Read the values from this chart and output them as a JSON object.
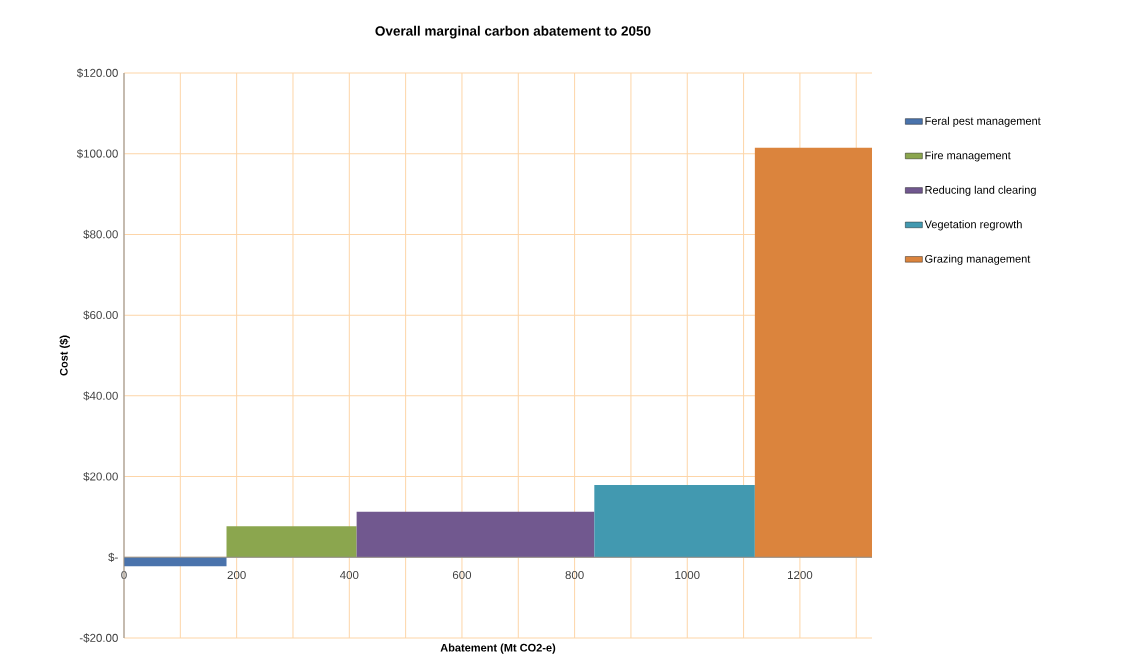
{
  "chart_data": {
    "type": "area",
    "title": "Overall marginal carbon abatement to 2050",
    "xlabel": "Abatement (Mt CO2-e)",
    "ylabel": "Cost ($)",
    "series": [
      {
        "name": "Feral pest management",
        "color": "#4a73ac",
        "x": [
          0,
          182
        ],
        "values": [
          -2.2,
          -2.2
        ]
      },
      {
        "name": "Fire management",
        "color": "#8ba64e",
        "x": [
          182,
          413
        ],
        "values": [
          7.7,
          7.7
        ]
      },
      {
        "name": "Reducing land clearing",
        "color": "#71588f",
        "x": [
          413,
          835
        ],
        "values": [
          11.3,
          11.3
        ]
      },
      {
        "name": "Vegetation regrowth",
        "color": "#4299b0",
        "x": [
          835,
          1120
        ],
        "values": [
          17.9,
          17.9
        ]
      },
      {
        "name": "Grazing management",
        "color": "#db843d",
        "x": [
          1120,
          1328
        ],
        "values": [
          101.5,
          101.5
        ]
      }
    ],
    "xlim": [
      0,
      1328
    ],
    "ylim": [
      -20,
      120
    ],
    "xticks": [
      0,
      {
        "value": 100,
        "label": null
      },
      200,
      {
        "value": 300,
        "label": null
      },
      400,
      {
        "value": 500,
        "label": null
      },
      600,
      {
        "value": 700,
        "label": null
      },
      800,
      {
        "value": 900,
        "label": null
      },
      1000,
      {
        "value": 1100,
        "label": null
      },
      1200,
      {
        "value": 1300,
        "label": null
      }
    ],
    "yticks": [
      {
        "value": -20,
        "label": "-$20.00"
      },
      {
        "value": 0,
        "label": "$-"
      },
      {
        "value": 20,
        "label": "$20.00"
      },
      {
        "value": 40,
        "label": "$40.00"
      },
      {
        "value": 60,
        "label": "$60.00"
      },
      {
        "value": 80,
        "label": "$80.00"
      },
      {
        "value": 100,
        "label": "$100.00"
      },
      {
        "value": 120,
        "label": "$120.00"
      }
    ],
    "grid": true,
    "legend": "right"
  }
}
